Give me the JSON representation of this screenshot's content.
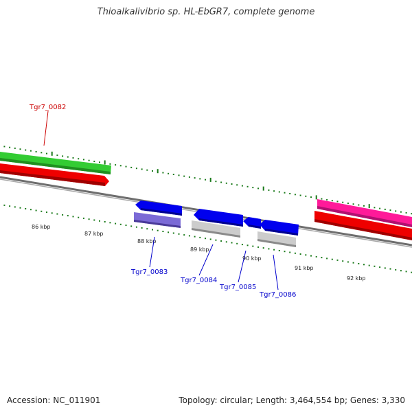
{
  "title": "Thioalkalivibrio sp. HL-EbGR7, complete genome",
  "footer": {
    "accession": "Accession: NC_011901",
    "summary": "Topology: circular; Length: 3,464,554 bp; Genes: 3,330"
  },
  "scale_labels": [
    "86 kbp",
    "87 kbp",
    "88 kbp",
    "89 kbp",
    "90 kbp",
    "91 kbp",
    "92 kbp"
  ],
  "gene_labels": [
    {
      "id": "g82",
      "text": "Tgr7_0082",
      "color": "#cc0000"
    },
    {
      "id": "g83",
      "text": "Tgr7_0083",
      "color": "#0000cc"
    },
    {
      "id": "g84",
      "text": "Tgr7_0084",
      "color": "#0000cc"
    },
    {
      "id": "g85",
      "text": "Tgr7_0085",
      "color": "#0000cc"
    },
    {
      "id": "g86",
      "text": "Tgr7_0086",
      "color": "#0000cc"
    }
  ],
  "colors": {
    "backbone": "#777777",
    "ticks": "#1a7a1a",
    "green_feature": "#33cc33",
    "red_feature": "#ee0000",
    "pink_feature": "#ff1a99",
    "blue_feature": "#0000ee",
    "lilac_feature": "#7b6ad6",
    "grey_feature": "#c8c8c8",
    "red_label": "#cc0000",
    "blue_label": "#0000cc"
  }
}
